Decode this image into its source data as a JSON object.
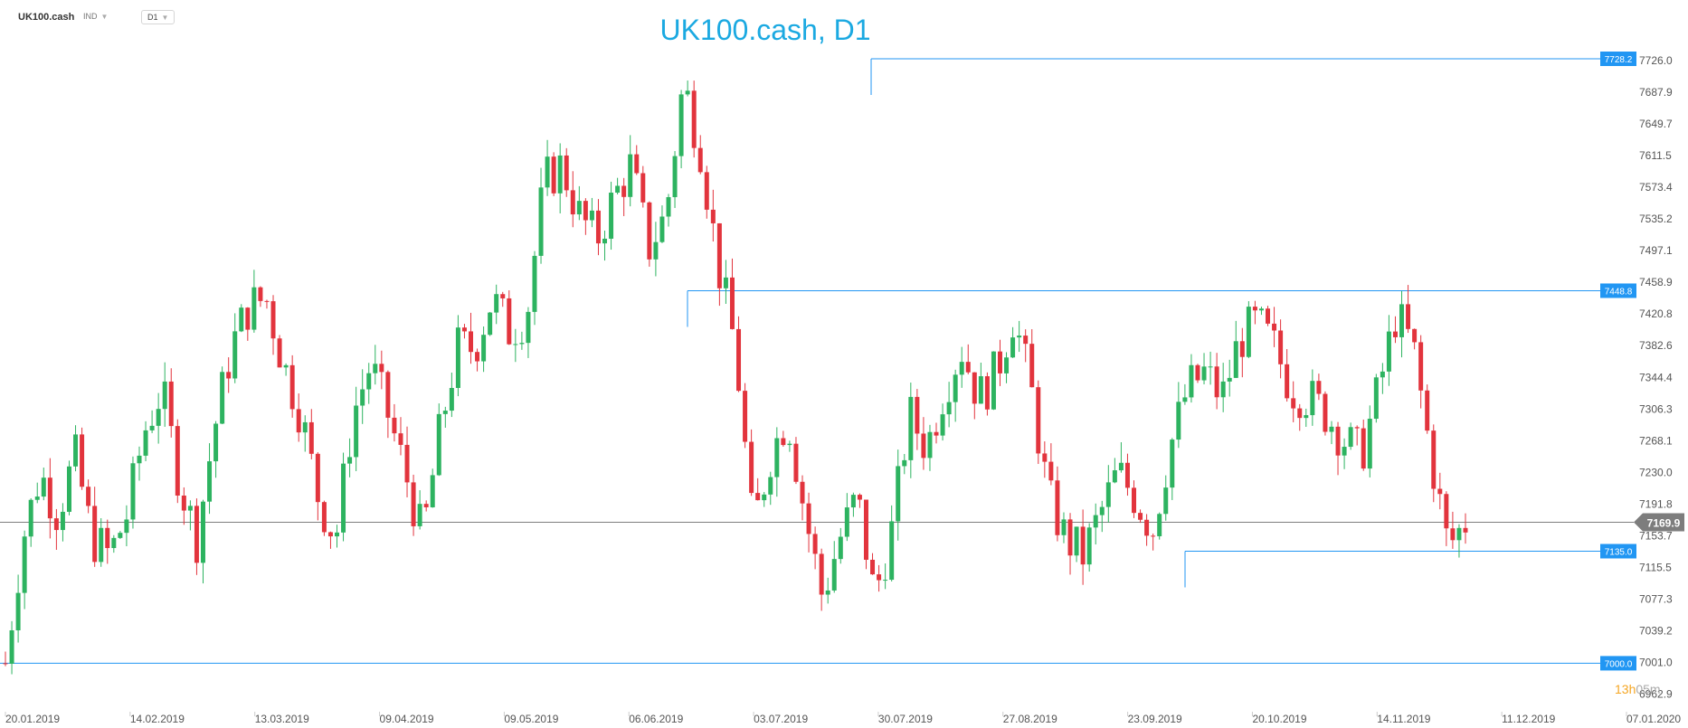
{
  "toolbar": {
    "symbol": "UK100.cash",
    "indicators_label": "IND",
    "timeframe": "D1"
  },
  "countdown": {
    "hours": "13h",
    "minutes": "05m"
  },
  "colors": {
    "up": "#2db360",
    "down": "#e2343d",
    "level_line": "#2196f3",
    "current_price": "#7d7d7d",
    "title": "#1ba9e1",
    "countdown_hours": "#f5a623"
  },
  "chart_data": {
    "type": "candlestick",
    "title": "UK100.cash, D1",
    "ylim": [
      6943.8,
      7750.0
    ],
    "y_ticks": [
      7726.0,
      7687.9,
      7649.7,
      7611.5,
      7573.4,
      7535.2,
      7497.1,
      7458.9,
      7420.8,
      7382.6,
      7344.4,
      7306.3,
      7268.1,
      7230.0,
      7191.8,
      7153.7,
      7115.5,
      7077.3,
      7039.2,
      7001.0,
      6962.9
    ],
    "x_ticks": [
      "20.01.2019",
      "14.02.2019",
      "13.03.2019",
      "09.04.2019",
      "09.05.2019",
      "06.06.2019",
      "03.07.2019",
      "30.07.2019",
      "27.08.2019",
      "23.09.2019",
      "20.10.2019",
      "14.11.2019",
      "11.12.2019",
      "07.01.2020"
    ],
    "levels": [
      7728.2,
      7448.8,
      7135.0,
      7000.0
    ],
    "current_price": 7169.9,
    "grid": false,
    "series": [
      {
        "trend": [
          7000,
          7150,
          7230,
          7180,
          7250,
          7150,
          7130,
          7180,
          7280,
          7330,
          7220,
          7150,
          7280,
          7380,
          7430,
          7440,
          7360,
          7300,
          7200,
          7150,
          7300,
          7360,
          7300,
          7230,
          7150,
          7280,
          7380,
          7380,
          7440,
          7400,
          7420,
          7580,
          7600,
          7540,
          7510,
          7560,
          7600,
          7500,
          7540,
          7700,
          7620,
          7480,
          7380,
          7160,
          7250,
          7300,
          7180,
          7080,
          7150,
          7200,
          7080,
          7160,
          7300,
          7260,
          7330,
          7380,
          7320,
          7350,
          7420,
          7330,
          7200,
          7150,
          7130,
          7180,
          7230,
          7200,
          7160,
          7260,
          7330,
          7350,
          7320,
          7390,
          7410,
          7380,
          7330,
          7320,
          7300,
          7270,
          7250,
          7330,
          7420,
          7380,
          7250,
          7140,
          7170
        ]
      }
    ]
  }
}
